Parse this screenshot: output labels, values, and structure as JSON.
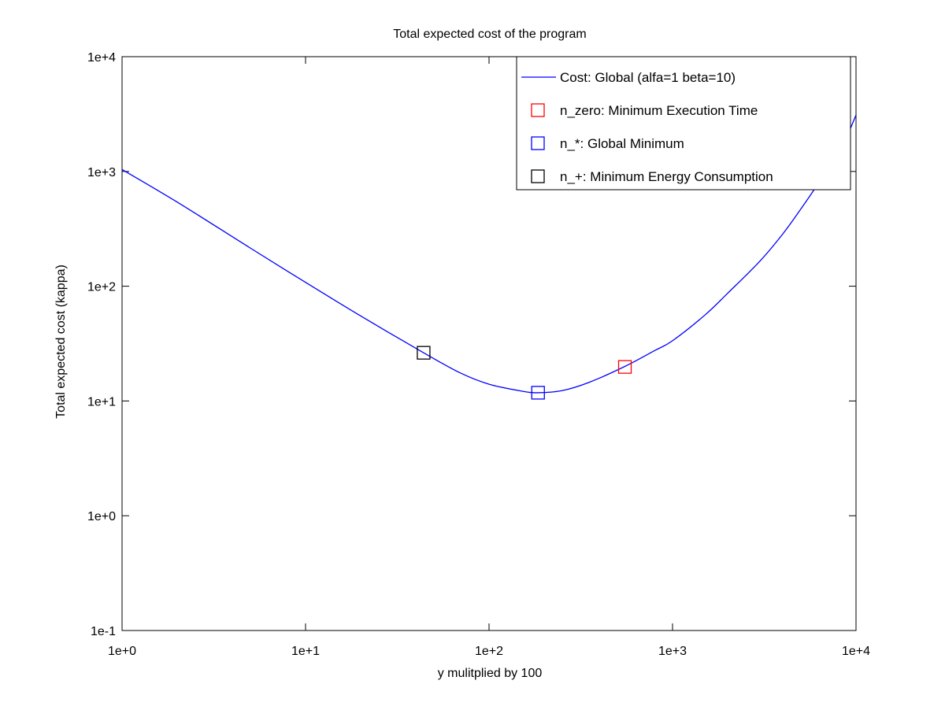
{
  "chart_data": {
    "type": "line",
    "title": "Total expected cost of the program",
    "xlabel": "y mulitplied by 100",
    "ylabel": "Total expected cost (kappa)",
    "xscale": "log",
    "yscale": "log",
    "xlim": [
      1,
      10000
    ],
    "ylim": [
      0.1,
      10000
    ],
    "x_ticks": [
      {
        "value": 1,
        "label": "1e+0"
      },
      {
        "value": 10,
        "label": "1e+1"
      },
      {
        "value": 100,
        "label": "1e+2"
      },
      {
        "value": 1000,
        "label": "1e+3"
      },
      {
        "value": 10000,
        "label": "1e+4"
      }
    ],
    "y_ticks": [
      {
        "value": 0.1,
        "label": "1e-1"
      },
      {
        "value": 1,
        "label": "1e+0"
      },
      {
        "value": 10,
        "label": "1e+1"
      },
      {
        "value": 100,
        "label": "1e+2"
      },
      {
        "value": 1000,
        "label": "1e+3"
      },
      {
        "value": 10000,
        "label": "1e+4"
      }
    ],
    "grid": false,
    "legend_position": "top-right",
    "series": [
      {
        "name": "Cost: Global (alfa=1 beta=10)",
        "kind": "line",
        "color": "#0000ff",
        "x": [
          1,
          2,
          5,
          10,
          20,
          44,
          70,
          100,
          150,
          185,
          250,
          350,
          550,
          800,
          1000,
          1500,
          2000,
          3000,
          4000,
          5000,
          6000,
          7000,
          8000,
          9000,
          10000
        ],
        "y": [
          1040,
          540,
          215,
          108,
          55,
          26.3,
          17.5,
          14,
          12.2,
          11.8,
          12.3,
          14.5,
          20,
          27.5,
          33.5,
          56,
          87,
          166,
          287,
          470,
          720,
          1070,
          1520,
          2100,
          3100
        ]
      },
      {
        "name": "n_zero: Minimum Execution Time",
        "kind": "marker",
        "marker": "square",
        "color": "#ff0000",
        "x": [
          550
        ],
        "y": [
          19.8
        ]
      },
      {
        "name": "n_*: Global Minimum",
        "kind": "marker",
        "marker": "square",
        "color": "#0000ff",
        "x": [
          185
        ],
        "y": [
          11.8
        ]
      },
      {
        "name": "n_+: Minimum Energy Consumption",
        "kind": "marker",
        "marker": "square",
        "color": "#000000",
        "x": [
          44
        ],
        "y": [
          26.3
        ]
      }
    ]
  }
}
